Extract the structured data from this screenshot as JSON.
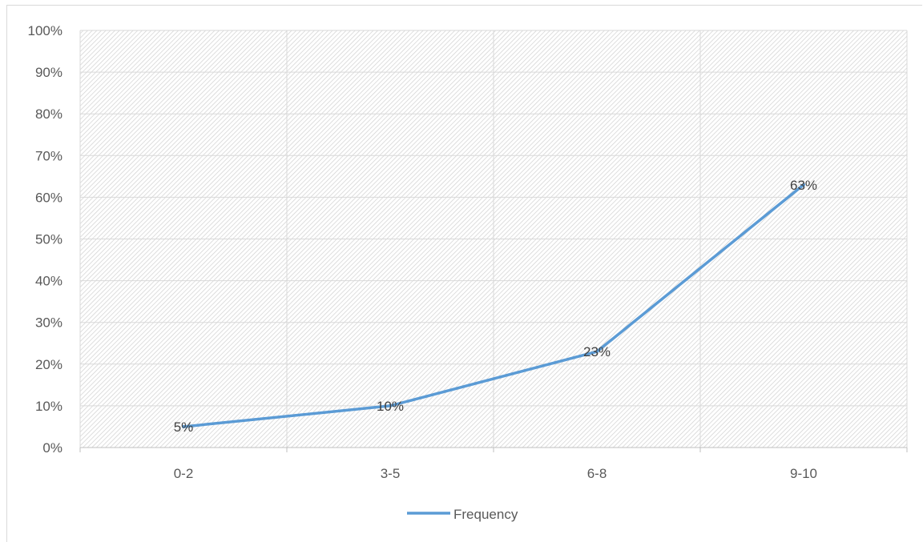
{
  "chart_data": {
    "type": "line",
    "categories": [
      "0-2",
      "3-5",
      "6-8",
      "9-10"
    ],
    "series": [
      {
        "name": "Frequency",
        "values": [
          5,
          10,
          23,
          63
        ],
        "color": "#5b9bd5"
      }
    ],
    "data_labels": [
      "5%",
      "10%",
      "23%",
      "63%"
    ],
    "ylim": [
      0,
      100
    ],
    "y_ticks": [
      0,
      10,
      20,
      30,
      40,
      50,
      60,
      70,
      80,
      90,
      100
    ],
    "y_tick_labels": [
      "0%",
      "10%",
      "20%",
      "30%",
      "40%",
      "50%",
      "60%",
      "70%",
      "80%",
      "90%",
      "100%"
    ],
    "title": "",
    "xlabel": "",
    "ylabel": "",
    "grid": true,
    "plot_area_pattern": "diagonal-hatch",
    "legend_position": "bottom"
  }
}
